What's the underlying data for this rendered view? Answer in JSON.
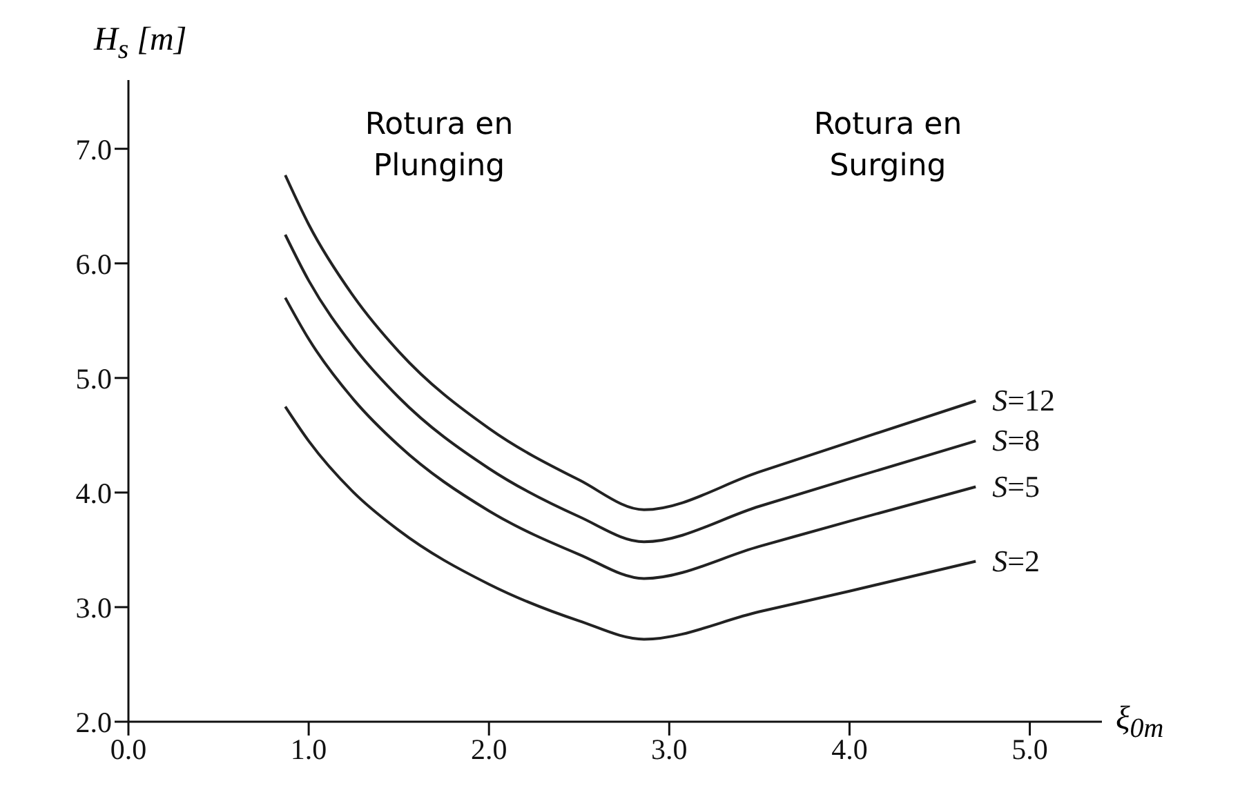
{
  "chart_data": {
    "type": "line",
    "xlabel": "ξ$_{0m}$",
    "ylabel": "H$_{s}$ [m]",
    "x": [
      0.87,
      1.0,
      1.25,
      1.5,
      2.0,
      2.5,
      2.86,
      3.5,
      4.0,
      4.7
    ],
    "series": [
      {
        "name": "S=12",
        "color": "#222222",
        "values": [
          6.77,
          6.34,
          5.71,
          5.23,
          4.56,
          4.11,
          3.85,
          4.18,
          4.44,
          4.8
        ]
      },
      {
        "name": "S=8",
        "color": "#222222",
        "values": [
          6.25,
          5.85,
          5.27,
          4.83,
          4.21,
          3.79,
          3.57,
          3.88,
          4.12,
          4.45
        ]
      },
      {
        "name": "S=5",
        "color": "#222222",
        "values": [
          5.7,
          5.34,
          4.81,
          4.41,
          3.84,
          3.46,
          3.25,
          3.53,
          3.75,
          4.05
        ]
      },
      {
        "name": "S=2",
        "color": "#222222",
        "values": [
          4.75,
          4.45,
          4.0,
          3.67,
          3.2,
          2.88,
          2.72,
          2.96,
          3.14,
          3.4
        ]
      }
    ],
    "annotations": [
      "Rotura en Plunging",
      "Rotura en Surging"
    ],
    "xlim": [
      0,
      5.4
    ],
    "ylim": [
      2,
      7.6
    ],
    "xticks": [
      {
        "value": 0,
        "label": "0.0"
      },
      {
        "value": 1,
        "label": "1.0"
      },
      {
        "value": 2,
        "label": "2.0"
      },
      {
        "value": 3,
        "label": "3.0"
      },
      {
        "value": 4,
        "label": "4.0"
      },
      {
        "value": 5,
        "label": "5.0"
      }
    ],
    "yticks": [
      {
        "value": 2,
        "label": "2.0"
      },
      {
        "value": 3,
        "label": "3.0"
      },
      {
        "value": 4,
        "label": "4.0"
      },
      {
        "value": 5,
        "label": "5.0"
      },
      {
        "value": 6,
        "label": "6.0"
      },
      {
        "value": 7,
        "label": "7.0"
      }
    ],
    "grid": false,
    "legend": false,
    "marker": "none",
    "line_style": "solid"
  }
}
